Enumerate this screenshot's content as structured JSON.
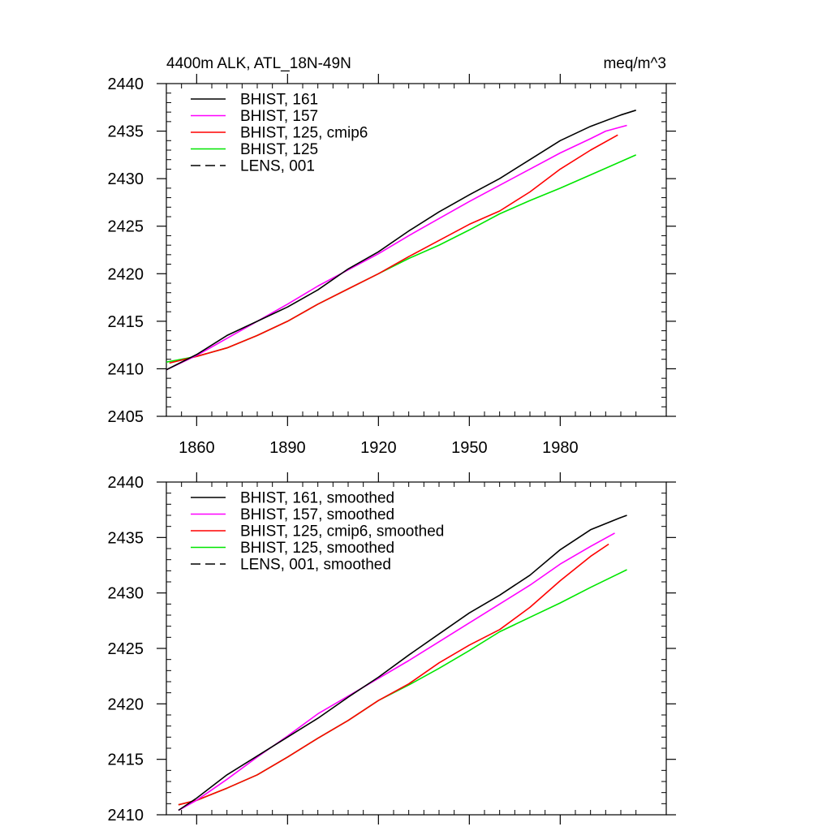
{
  "figure": {
    "title_left": "4400m ALK, ATL_18N-49N",
    "title_right": "meq/m^3"
  },
  "chart_data": [
    {
      "type": "line",
      "title": "4400m ALK, ATL_18N-49N",
      "units": "meq/m^3",
      "xlim": [
        1850,
        2015
      ],
      "ylim": [
        2405,
        2440
      ],
      "x_ticks": [
        1860,
        1890,
        1920,
        1950,
        1980
      ],
      "x_tick_labels_shown": true,
      "y_ticks": [
        2405,
        2410,
        2415,
        2420,
        2425,
        2430,
        2435,
        2440
      ],
      "legend_position": "top-left",
      "legend": [
        {
          "label": "BHIST, 161",
          "color": "#000000",
          "dash": "solid"
        },
        {
          "label": "BHIST, 157",
          "color": "#ff00ff",
          "dash": "solid"
        },
        {
          "label": "BHIST, 125, cmip6",
          "color": "#ff0000",
          "dash": "solid"
        },
        {
          "label": "BHIST, 125",
          "color": "#00e600",
          "dash": "solid"
        },
        {
          "label": "LENS, 001",
          "color": "#000000",
          "dash": "dashed"
        }
      ],
      "series": [
        {
          "name": "BHIST, 161",
          "color": "#000000",
          "x": [
            1850,
            1860,
            1870,
            1880,
            1890,
            1900,
            1910,
            1920,
            1930,
            1940,
            1950,
            1960,
            1970,
            1980,
            1990,
            2000,
            2005
          ],
          "y": [
            2409.9,
            2411.5,
            2413.5,
            2415.0,
            2416.5,
            2418.3,
            2420.5,
            2422.3,
            2424.5,
            2426.5,
            2428.3,
            2430.0,
            2432.0,
            2434.0,
            2435.5,
            2436.7,
            2437.2
          ]
        },
        {
          "name": "BHIST, 157",
          "color": "#ff00ff",
          "x": [
            1850,
            1860,
            1870,
            1880,
            1890,
            1900,
            1910,
            1920,
            1930,
            1940,
            1950,
            1960,
            1970,
            1980,
            1990,
            1995,
            2002
          ],
          "y": [
            2409.9,
            2411.4,
            2413.2,
            2415.0,
            2416.8,
            2418.7,
            2420.4,
            2422.1,
            2424.0,
            2425.8,
            2427.6,
            2429.3,
            2431.0,
            2432.7,
            2434.2,
            2435.0,
            2435.6
          ]
        },
        {
          "name": "BHIST, 125, cmip6",
          "color": "#ff0000",
          "x": [
            1851,
            1860,
            1870,
            1880,
            1890,
            1900,
            1910,
            1920,
            1930,
            1940,
            1950,
            1960,
            1970,
            1980,
            1990,
            1999
          ],
          "y": [
            2410.6,
            2411.3,
            2412.2,
            2413.5,
            2415.0,
            2416.8,
            2418.4,
            2420.0,
            2421.8,
            2423.5,
            2425.2,
            2426.6,
            2428.6,
            2431.0,
            2433.0,
            2434.6
          ]
        },
        {
          "name": "BHIST, 125",
          "color": "#00e600",
          "x": [
            1850,
            1860,
            1870,
            1880,
            1890,
            1900,
            1910,
            1920,
            1930,
            1940,
            1950,
            1960,
            1970,
            1980,
            1990,
            2000,
            2005
          ],
          "y": [
            2410.7,
            2411.3,
            2412.2,
            2413.5,
            2415.0,
            2416.8,
            2418.4,
            2420.0,
            2421.6,
            2423.0,
            2424.6,
            2426.3,
            2427.7,
            2429.0,
            2430.4,
            2431.8,
            2432.5
          ]
        }
      ]
    },
    {
      "type": "line",
      "title": "",
      "xlim": [
        1850,
        2015
      ],
      "ylim": [
        2410,
        2440
      ],
      "x_ticks": [
        1860,
        1890,
        1920,
        1950,
        1980
      ],
      "x_tick_labels_shown": false,
      "y_ticks": [
        2410,
        2415,
        2420,
        2425,
        2430,
        2435,
        2440
      ],
      "legend_position": "top-left",
      "legend": [
        {
          "label": "BHIST, 161, smoothed",
          "color": "#000000",
          "dash": "solid"
        },
        {
          "label": "BHIST, 157, smoothed",
          "color": "#ff00ff",
          "dash": "solid"
        },
        {
          "label": "BHIST, 125, cmip6, smoothed",
          "color": "#ff0000",
          "dash": "solid"
        },
        {
          "label": "BHIST, 125, smoothed",
          "color": "#00e600",
          "dash": "solid"
        },
        {
          "label": "LENS, 001, smoothed",
          "color": "#000000",
          "dash": "dashed"
        }
      ],
      "series": [
        {
          "name": "BHIST, 161, smoothed",
          "color": "#000000",
          "x": [
            1854,
            1860,
            1870,
            1880,
            1890,
            1900,
            1910,
            1920,
            1930,
            1940,
            1950,
            1960,
            1970,
            1980,
            1990,
            2000,
            2002
          ],
          "y": [
            2410.4,
            2411.5,
            2413.6,
            2415.3,
            2417.0,
            2418.7,
            2420.6,
            2422.4,
            2424.4,
            2426.3,
            2428.2,
            2429.8,
            2431.6,
            2433.9,
            2435.7,
            2436.8,
            2437.0
          ]
        },
        {
          "name": "BHIST, 157, smoothed",
          "color": "#ff00ff",
          "x": [
            1854,
            1860,
            1870,
            1880,
            1890,
            1900,
            1910,
            1920,
            1930,
            1940,
            1950,
            1960,
            1970,
            1980,
            1990,
            1998
          ],
          "y": [
            2410.4,
            2411.3,
            2413.2,
            2415.2,
            2417.1,
            2419.1,
            2420.7,
            2422.3,
            2423.9,
            2425.6,
            2427.3,
            2429.0,
            2430.7,
            2432.6,
            2434.2,
            2435.4
          ]
        },
        {
          "name": "BHIST, 125, cmip6, smoothed",
          "color": "#ff0000",
          "x": [
            1854,
            1860,
            1870,
            1880,
            1890,
            1900,
            1910,
            1920,
            1930,
            1940,
            1950,
            1960,
            1970,
            1980,
            1990,
            1996
          ],
          "y": [
            2410.9,
            2411.3,
            2412.4,
            2413.6,
            2415.2,
            2416.9,
            2418.5,
            2420.3,
            2421.8,
            2423.7,
            2425.3,
            2426.7,
            2428.7,
            2431.1,
            2433.3,
            2434.4
          ]
        },
        {
          "name": "BHIST, 125, smoothed",
          "color": "#00e600",
          "x": [
            1854,
            1860,
            1870,
            1880,
            1890,
            1900,
            1910,
            1920,
            1930,
            1940,
            1950,
            1960,
            1970,
            1980,
            1990,
            2002
          ],
          "y": [
            2410.9,
            2411.3,
            2412.4,
            2413.6,
            2415.2,
            2416.9,
            2418.5,
            2420.3,
            2421.7,
            2423.2,
            2424.8,
            2426.5,
            2427.8,
            2429.1,
            2430.5,
            2432.1
          ]
        }
      ]
    }
  ]
}
